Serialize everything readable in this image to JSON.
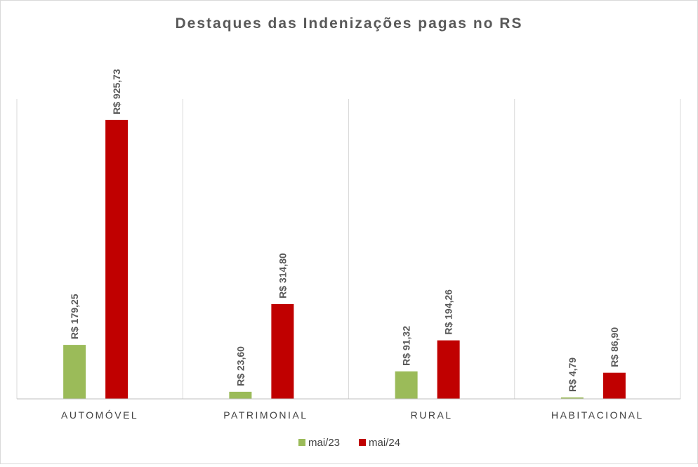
{
  "chart_data": {
    "type": "bar",
    "title": "Destaques das Indenizações pagas no RS",
    "categories": [
      "AUTOMÓVEL",
      "PATRIMONIAL",
      "RURAL",
      "HABITACIONAL"
    ],
    "series": [
      {
        "name": "mai/23",
        "color": "#9BBB59",
        "values": [
          179.25,
          23.6,
          91.32,
          4.79
        ],
        "labels": [
          "R$ 179,25",
          "R$ 23,60",
          "R$ 91,32",
          "R$ 4,79"
        ]
      },
      {
        "name": "mai/24",
        "color": "#C00000",
        "values": [
          925.73,
          314.8,
          194.26,
          86.9
        ],
        "labels": [
          "R$ 925,73",
          "R$ 314,80",
          "R$ 194,26",
          "R$ 86,90"
        ]
      }
    ],
    "ylim": [
      0,
      1000
    ],
    "xlabel": "",
    "ylabel": "",
    "grid": "vertical category separators",
    "legend": "bottom-center"
  }
}
